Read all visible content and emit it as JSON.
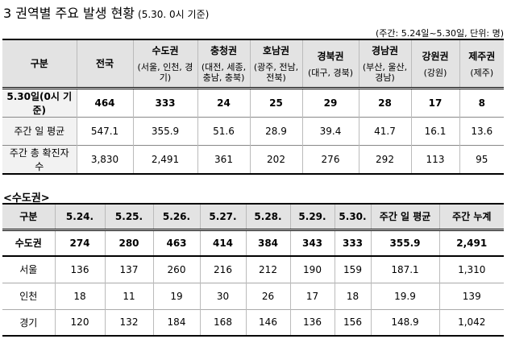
{
  "title": "3 권역별 주요 발생 현황",
  "title_note": "(5.30. 0시 기준)",
  "unit_note": "(주간: 5.24일~5.30일, 단위: 명)",
  "table1": {
    "columns": [
      {
        "name": "구분"
      },
      {
        "name": "전국"
      },
      {
        "name": "수도권",
        "detail": "(서울, 인천, 경기)"
      },
      {
        "name": "충청권",
        "detail": "(대전, 세종, 충남, 충북)"
      },
      {
        "name": "호남권",
        "detail": "(광주, 전남, 전북)"
      },
      {
        "name": "경북권",
        "detail": "(대구, 경북)"
      },
      {
        "name": "경남권",
        "detail": "(부산, 울산, 경남)"
      },
      {
        "name": "강원권",
        "detail": "(강원)"
      },
      {
        "name": "제주권",
        "detail": "(제주)"
      }
    ],
    "rows": [
      [
        "5.30일(0시 기준)",
        "464",
        "333",
        "24",
        "25",
        "29",
        "28",
        "17",
        "8"
      ],
      [
        "주간 일 평균",
        "547.1",
        "355.9",
        "51.6",
        "28.9",
        "39.4",
        "41.7",
        "16.1",
        "13.6"
      ],
      [
        "주간 총 확진자 수",
        "3,830",
        "2,491",
        "361",
        "202",
        "276",
        "292",
        "113",
        "95"
      ]
    ]
  },
  "section_title": "<수도권>",
  "table2": {
    "columns": [
      "구분",
      "5.24.",
      "5.25.",
      "5.26.",
      "5.27.",
      "5.28.",
      "5.29.",
      "5.30.",
      "주간 일 평균",
      "주간 누계"
    ],
    "rows": [
      [
        "수도권",
        "274",
        "280",
        "463",
        "414",
        "384",
        "343",
        "333",
        "355.9",
        "2,491"
      ],
      [
        "서울",
        "136",
        "137",
        "260",
        "216",
        "212",
        "190",
        "159",
        "187.1",
        "1,310"
      ],
      [
        "인천",
        "18",
        "11",
        "19",
        "30",
        "26",
        "17",
        "18",
        "19.9",
        "139"
      ],
      [
        "경기",
        "120",
        "132",
        "184",
        "168",
        "146",
        "136",
        "156",
        "148.9",
        "1,042"
      ]
    ]
  }
}
